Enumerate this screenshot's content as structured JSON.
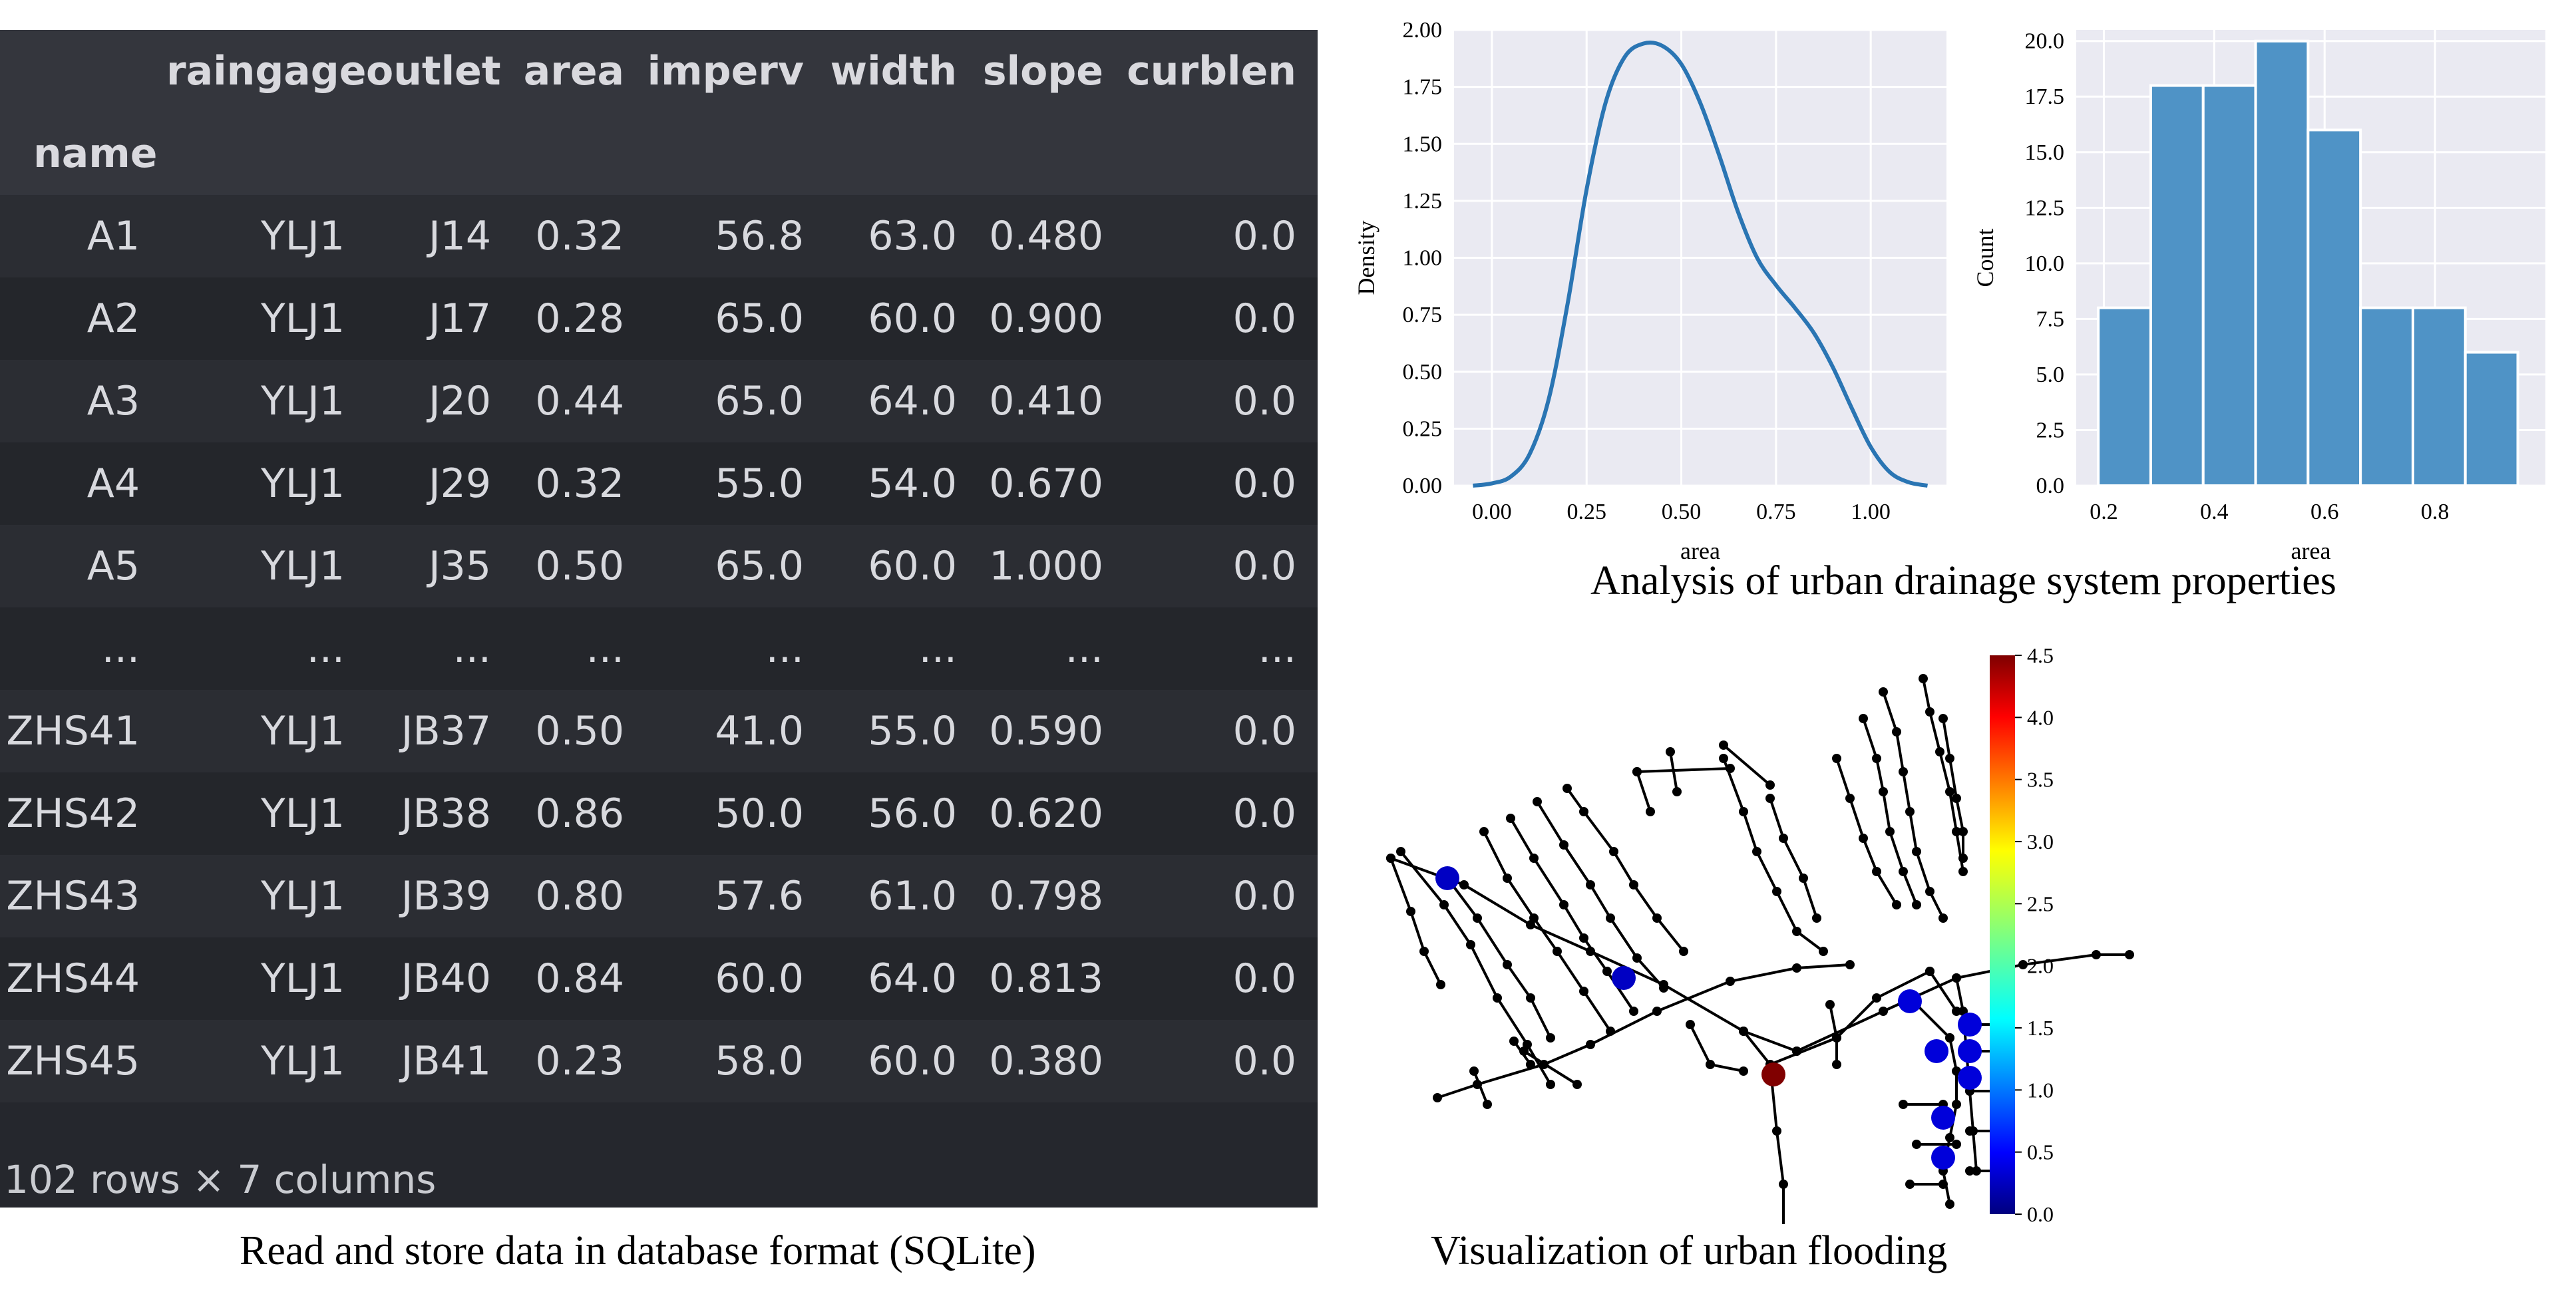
{
  "table": {
    "index_name": "name",
    "columns": [
      "raingage",
      "outlet",
      "area",
      "imperv",
      "width",
      "slope",
      "curblen"
    ],
    "rows": [
      {
        "name": "A1",
        "cells": [
          "YLJ1",
          "J14",
          "0.32",
          "56.8",
          "63.0",
          "0.480",
          "0.0"
        ]
      },
      {
        "name": "A2",
        "cells": [
          "YLJ1",
          "J17",
          "0.28",
          "65.0",
          "60.0",
          "0.900",
          "0.0"
        ]
      },
      {
        "name": "A3",
        "cells": [
          "YLJ1",
          "J20",
          "0.44",
          "65.0",
          "64.0",
          "0.410",
          "0.0"
        ]
      },
      {
        "name": "A4",
        "cells": [
          "YLJ1",
          "J29",
          "0.32",
          "55.0",
          "54.0",
          "0.670",
          "0.0"
        ]
      },
      {
        "name": "A5",
        "cells": [
          "YLJ1",
          "J35",
          "0.50",
          "65.0",
          "60.0",
          "1.000",
          "0.0"
        ]
      },
      {
        "name": "...",
        "cells": [
          "...",
          "...",
          "...",
          "...",
          "...",
          "...",
          "..."
        ]
      },
      {
        "name": "ZHS41",
        "cells": [
          "YLJ1",
          "JB37",
          "0.50",
          "41.0",
          "55.0",
          "0.590",
          "0.0"
        ]
      },
      {
        "name": "ZHS42",
        "cells": [
          "YLJ1",
          "JB38",
          "0.86",
          "50.0",
          "56.0",
          "0.620",
          "0.0"
        ]
      },
      {
        "name": "ZHS43",
        "cells": [
          "YLJ1",
          "JB39",
          "0.80",
          "57.6",
          "61.0",
          "0.798",
          "0.0"
        ]
      },
      {
        "name": "ZHS44",
        "cells": [
          "YLJ1",
          "JB40",
          "0.84",
          "60.0",
          "64.0",
          "0.813",
          "0.0"
        ]
      },
      {
        "name": "ZHS45",
        "cells": [
          "YLJ1",
          "JB41",
          "0.23",
          "58.0",
          "60.0",
          "0.380",
          "0.0"
        ]
      }
    ],
    "row_count": "102 rows × 7 columns"
  },
  "captions": {
    "table": "Read and store data in database format (SQLite)",
    "analysis": "Analysis of urban drainage system properties",
    "flooding": "Visualization of urban flooding"
  },
  "colors": {
    "table_bg": "#25272d",
    "plot_bg": "#eaeaf2",
    "kde_line": "#2a75b3",
    "hist_bar": "#4f93c6",
    "network_line": "#000000"
  },
  "chart_data": [
    {
      "type": "line",
      "xlabel": "area",
      "ylabel": "Density",
      "xlim": [
        -0.1,
        1.2
      ],
      "ylim": [
        0,
        2.0
      ],
      "xticks": [
        "0.00",
        "0.25",
        "0.50",
        "0.75",
        "1.00"
      ],
      "yticks": [
        "0.00",
        "0.25",
        "0.50",
        "0.75",
        "1.00",
        "1.25",
        "1.50",
        "1.75",
        "2.00"
      ],
      "grid": true,
      "x": [
        -0.05,
        0.0,
        0.05,
        0.1,
        0.15,
        0.2,
        0.25,
        0.3,
        0.35,
        0.4,
        0.45,
        0.5,
        0.55,
        0.6,
        0.65,
        0.7,
        0.75,
        0.8,
        0.85,
        0.9,
        0.95,
        1.0,
        1.05,
        1.1,
        1.15
      ],
      "y": [
        0.0,
        0.01,
        0.04,
        0.14,
        0.38,
        0.8,
        1.3,
        1.68,
        1.88,
        1.94,
        1.93,
        1.85,
        1.68,
        1.45,
        1.2,
        1.0,
        0.88,
        0.78,
        0.67,
        0.52,
        0.34,
        0.17,
        0.06,
        0.015,
        0.0
      ]
    },
    {
      "type": "bar",
      "xlabel": "area",
      "ylabel": "Count",
      "xlim": [
        0.15,
        1.0
      ],
      "ylim": [
        0,
        20.5
      ],
      "xticks": [
        "0.2",
        "0.4",
        "0.6",
        "0.8"
      ],
      "yticks": [
        "0.0",
        "2.5",
        "5.0",
        "7.5",
        "10.0",
        "12.5",
        "15.0",
        "17.5",
        "20.0"
      ],
      "grid": true,
      "bin_edges": [
        0.19,
        0.285,
        0.38,
        0.475,
        0.57,
        0.665,
        0.76,
        0.855,
        0.95
      ],
      "values": [
        8,
        18,
        18,
        20,
        16,
        8,
        8,
        6
      ]
    },
    {
      "type": "heatmap",
      "colorbar": {
        "ticks": [
          "0.0",
          "0.5",
          "1.0",
          "1.5",
          "2.0",
          "2.5",
          "3.0",
          "3.5",
          "4.0",
          "4.5"
        ],
        "range": [
          0,
          4.5
        ],
        "colormap": "jet"
      },
      "flooded_nodes": [
        {
          "value": 0.3
        },
        {
          "value": 0.3
        },
        {
          "value": 4.5
        },
        {
          "value": 0.4
        },
        {
          "value": 0.4
        },
        {
          "value": 0.4
        },
        {
          "value": 0.4
        },
        {
          "value": 0.4
        },
        {
          "value": 0.4
        },
        {
          "value": 0.4
        }
      ]
    }
  ]
}
